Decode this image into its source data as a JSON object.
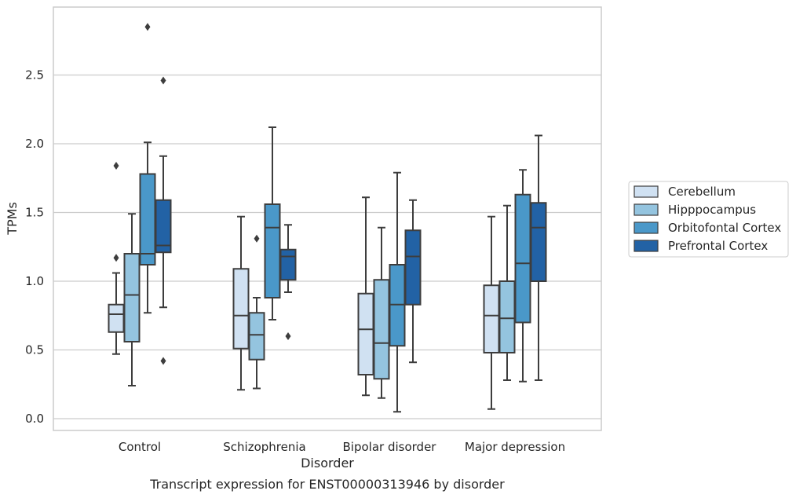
{
  "chart_data": {
    "type": "box",
    "title": "",
    "caption": "Transcript expression for ENST00000313946 by disorder",
    "xlabel": "Disorder",
    "ylabel": "TPMs",
    "ylim": [
      -0.08,
      2.98
    ],
    "yticks": [
      0.0,
      0.5,
      1.0,
      1.5,
      2.0,
      2.5
    ],
    "ytick_labels": [
      "0.0",
      "0.5",
      "1.0",
      "1.5",
      "2.0",
      "2.5"
    ],
    "grid": "horizontal",
    "legend_position": "right",
    "categories": [
      "Control",
      "Schizophrenia",
      "Bipolar disorder",
      "Major depression"
    ],
    "series": [
      {
        "name": "Cerebellum",
        "color": "#d0e1f2",
        "boxes": [
          {
            "whisker_low": 0.47,
            "q1": 0.63,
            "median": 0.76,
            "q3": 0.83,
            "whisker_high": 1.06,
            "outliers": [
              1.17,
              1.84
            ]
          },
          {
            "whisker_low": 0.21,
            "q1": 0.51,
            "median": 0.75,
            "q3": 1.09,
            "whisker_high": 1.47,
            "outliers": []
          },
          {
            "whisker_low": 0.17,
            "q1": 0.32,
            "median": 0.65,
            "q3": 0.91,
            "whisker_high": 1.61,
            "outliers": []
          },
          {
            "whisker_low": 0.07,
            "q1": 0.48,
            "median": 0.75,
            "q3": 0.97,
            "whisker_high": 1.47,
            "outliers": []
          }
        ]
      },
      {
        "name": "Hipppocampus",
        "color": "#94c4df",
        "boxes": [
          {
            "whisker_low": 0.24,
            "q1": 0.56,
            "median": 0.9,
            "q3": 1.2,
            "whisker_high": 1.49,
            "outliers": []
          },
          {
            "whisker_low": 0.22,
            "q1": 0.43,
            "median": 0.61,
            "q3": 0.77,
            "whisker_high": 0.88,
            "outliers": [
              1.31
            ]
          },
          {
            "whisker_low": 0.15,
            "q1": 0.29,
            "median": 0.55,
            "q3": 1.01,
            "whisker_high": 1.39,
            "outliers": []
          },
          {
            "whisker_low": 0.28,
            "q1": 0.48,
            "median": 0.73,
            "q3": 1.0,
            "whisker_high": 1.55,
            "outliers": []
          }
        ]
      },
      {
        "name": "Orbitofontal Cortex",
        "color": "#4a98c9",
        "boxes": [
          {
            "whisker_low": 0.77,
            "q1": 1.12,
            "median": 1.2,
            "q3": 1.78,
            "whisker_high": 2.01,
            "outliers": [
              2.85
            ]
          },
          {
            "whisker_low": 0.72,
            "q1": 0.88,
            "median": 1.39,
            "q3": 1.56,
            "whisker_high": 2.12,
            "outliers": []
          },
          {
            "whisker_low": 0.05,
            "q1": 0.53,
            "median": 0.83,
            "q3": 1.12,
            "whisker_high": 1.79,
            "outliers": []
          },
          {
            "whisker_low": 0.27,
            "q1": 0.7,
            "median": 1.13,
            "q3": 1.63,
            "whisker_high": 1.81,
            "outliers": []
          }
        ]
      },
      {
        "name": "Prefrontal Cortex",
        "color": "#2262a5",
        "boxes": [
          {
            "whisker_low": 0.81,
            "q1": 1.21,
            "median": 1.26,
            "q3": 1.59,
            "whisker_high": 1.91,
            "outliers": [
              0.42,
              2.46
            ]
          },
          {
            "whisker_low": 0.92,
            "q1": 1.01,
            "median": 1.18,
            "q3": 1.23,
            "whisker_high": 1.41,
            "outliers": [
              0.6
            ]
          },
          {
            "whisker_low": 0.41,
            "q1": 0.83,
            "median": 1.18,
            "q3": 1.37,
            "whisker_high": 1.59,
            "outliers": []
          },
          {
            "whisker_low": 0.28,
            "q1": 1.0,
            "median": 1.39,
            "q3": 1.57,
            "whisker_high": 2.06,
            "outliers": []
          }
        ]
      }
    ]
  },
  "colors": {
    "edge": "#3d3d3d",
    "grid": "#cccccc",
    "frame": "#cccccc",
    "text": "#262626"
  }
}
